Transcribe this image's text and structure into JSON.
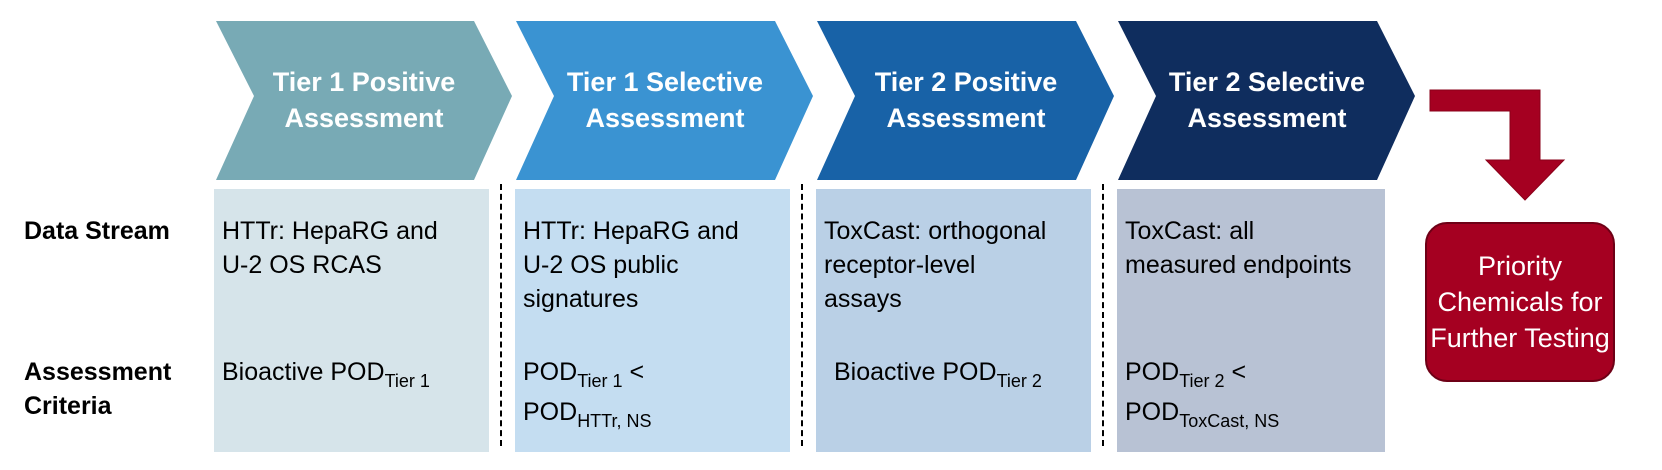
{
  "tiers": [
    {
      "title_line1": "Tier 1 Positive",
      "title_line2": "Assessment",
      "color": "#78aab5",
      "panel_color": "#d6e4ea",
      "data_stream": [
        "HTTr: HepaRG and",
        "U-2 OS RCAS"
      ],
      "criteria": {
        "line1_main": "Bioactive POD",
        "line1_sub": "Tier 1",
        "line2_main": "",
        "line2_sub": ""
      }
    },
    {
      "title_line1": "Tier 1 Selective",
      "title_line2": "Assessment",
      "color": "#3a93d2",
      "panel_color": "#c4ddf1",
      "data_stream": [
        "HTTr: HepaRG and",
        "U-2 OS public",
        "signatures"
      ],
      "criteria": {
        "line1_main": "POD",
        "line1_sub": "Tier 1",
        "line1_tail": " <",
        "line2_main": "POD",
        "line2_sub": "HTTr, NS"
      }
    },
    {
      "title_line1": "Tier 2 Positive",
      "title_line2": "Assessment",
      "color": "#1862a7",
      "panel_color": "#bad0e6",
      "data_stream": [
        "ToxCast: orthogonal",
        "receptor-level",
        "assays"
      ],
      "criteria": {
        "line1_main": "Bioactive POD",
        "line1_sub": "Tier 2",
        "line2_main": "",
        "line2_sub": ""
      }
    },
    {
      "title_line1": "Tier 2 Selective",
      "title_line2": "Assessment",
      "color": "#0f2d5e",
      "panel_color": "#b8c2d4",
      "data_stream": [
        "ToxCast: all",
        "measured endpoints"
      ],
      "criteria": {
        "line1_main": "POD",
        "line1_sub": "Tier 2",
        "line1_tail": " <",
        "line2_main": "POD",
        "line2_sub": "ToxCast, NS"
      }
    }
  ],
  "row_labels": {
    "data_stream": "Data Stream",
    "criteria_line1": "Assessment",
    "criteria_line2": "Criteria"
  },
  "output": {
    "line1": "Priority",
    "line2": "Chemicals for",
    "line3": "Further Testing",
    "color": "#a50021"
  },
  "arrow_color": "#a50021"
}
